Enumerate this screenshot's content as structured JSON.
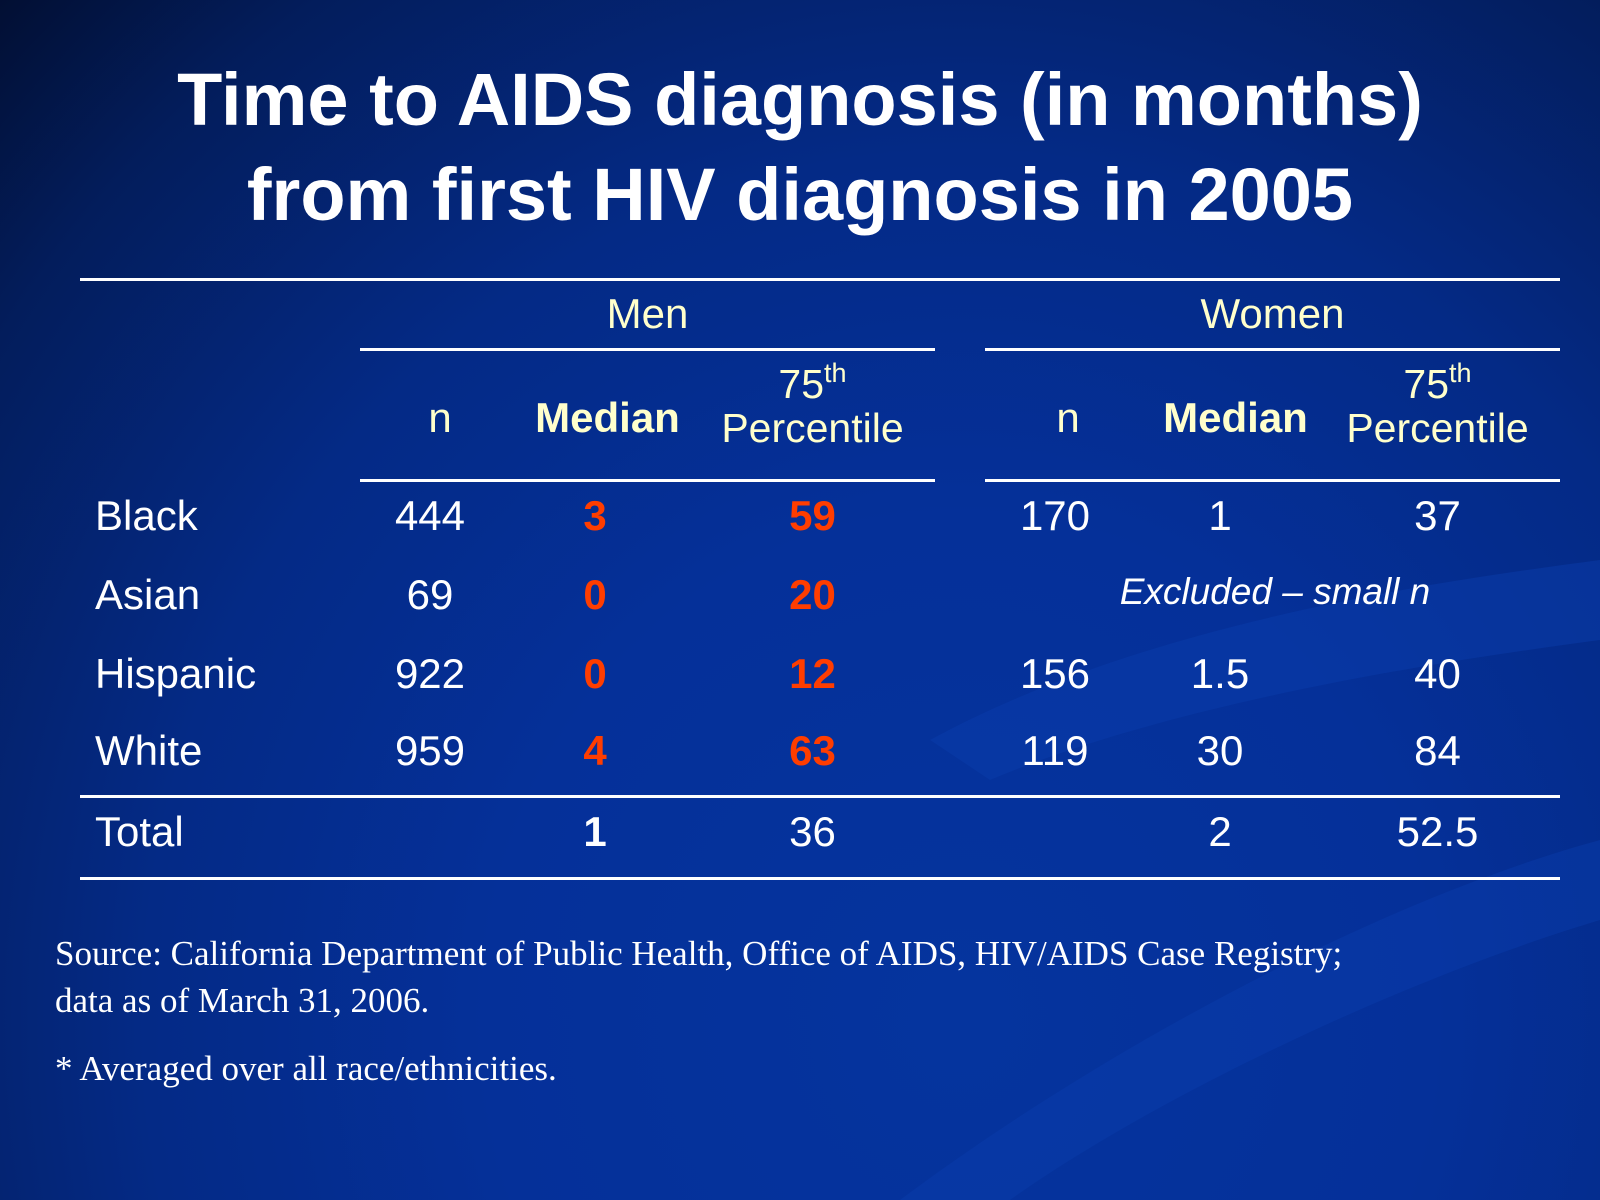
{
  "title": {
    "line1": "Time to AIDS diagnosis (in months)",
    "line2": "from first HIV diagnosis in 2005"
  },
  "table": {
    "group_men": "Men",
    "group_women": "Women",
    "col_n": "n",
    "col_median": "Median",
    "col_pct_number": "75",
    "col_pct_suffix": "th",
    "col_pct_word": "Percentile",
    "rows": [
      {
        "label": "Black",
        "men_n": "444",
        "men_median": "3",
        "men_p75": "59",
        "women_n": "170",
        "women_median": "1",
        "women_p75": "37"
      },
      {
        "label": "Asian",
        "men_n": "69",
        "men_median": "0",
        "men_p75": "20",
        "women_note": "Excluded – small n"
      },
      {
        "label": "Hispanic",
        "men_n": "922",
        "men_median": "0",
        "men_p75": "12",
        "women_n": "156",
        "women_median": "1.5",
        "women_p75": "40"
      },
      {
        "label": "White",
        "men_n": "959",
        "men_median": "4",
        "men_p75": "63",
        "women_n": "119",
        "women_median": "30",
        "women_p75": "84"
      }
    ],
    "total": {
      "label": "Total",
      "men_median": "1",
      "men_p75": "36",
      "women_median": "2",
      "women_p75": "52.5"
    }
  },
  "footer": {
    "source_line1": "Source: California Department of Public Health, Office of AIDS, HIV/AIDS Case Registry;",
    "source_line2": "data as of March 31, 2006.",
    "note": "* Averaged over all race/ethnicities."
  },
  "colors": {
    "background": "#05349e",
    "header_text": "#ffffcc",
    "highlight": "#ff3d00",
    "text": "#ffffff"
  }
}
